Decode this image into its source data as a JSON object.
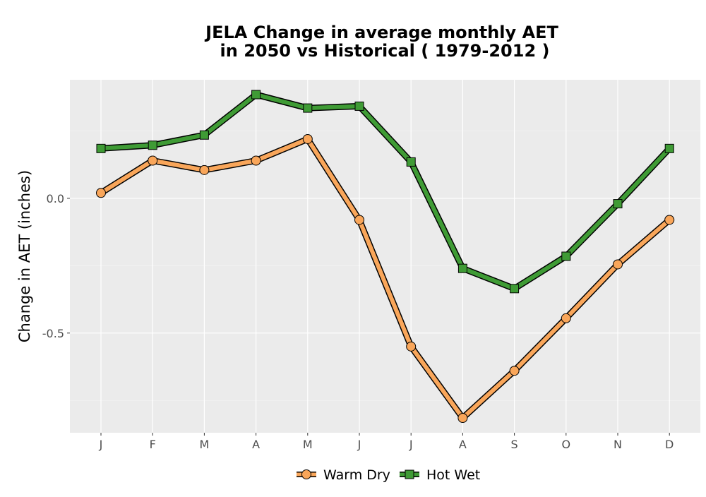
{
  "chart_data": {
    "type": "line",
    "title_line1": "JELA  Change in average monthly AET",
    "title_line2": "in 2050 vs Historical ( 1979-2012 )",
    "xlabel": "",
    "ylabel": "Change in AET (inches)",
    "categories": [
      "J",
      "F",
      "M",
      "A",
      "M",
      "J",
      "J",
      "A",
      "S",
      "O",
      "N",
      "D"
    ],
    "ylim": [
      -0.87,
      0.44
    ],
    "y_ticks": [
      0.0,
      -0.5
    ],
    "y_tick_labels": [
      "0.0",
      "-0.5"
    ],
    "grid": true,
    "legend_position": "bottom",
    "series": [
      {
        "name": "Warm Dry",
        "marker": "circle",
        "color": "#f9a65a",
        "values": [
          0.02,
          0.14,
          0.105,
          0.14,
          0.22,
          -0.08,
          -0.55,
          -0.815,
          -0.64,
          -0.445,
          -0.245,
          -0.08
        ]
      },
      {
        "name": "Hot Wet",
        "marker": "square",
        "color": "#3f9b35",
        "values": [
          0.185,
          0.197,
          0.235,
          0.385,
          0.335,
          0.342,
          0.135,
          -0.26,
          -0.335,
          -0.215,
          -0.02,
          0.185
        ]
      }
    ]
  }
}
